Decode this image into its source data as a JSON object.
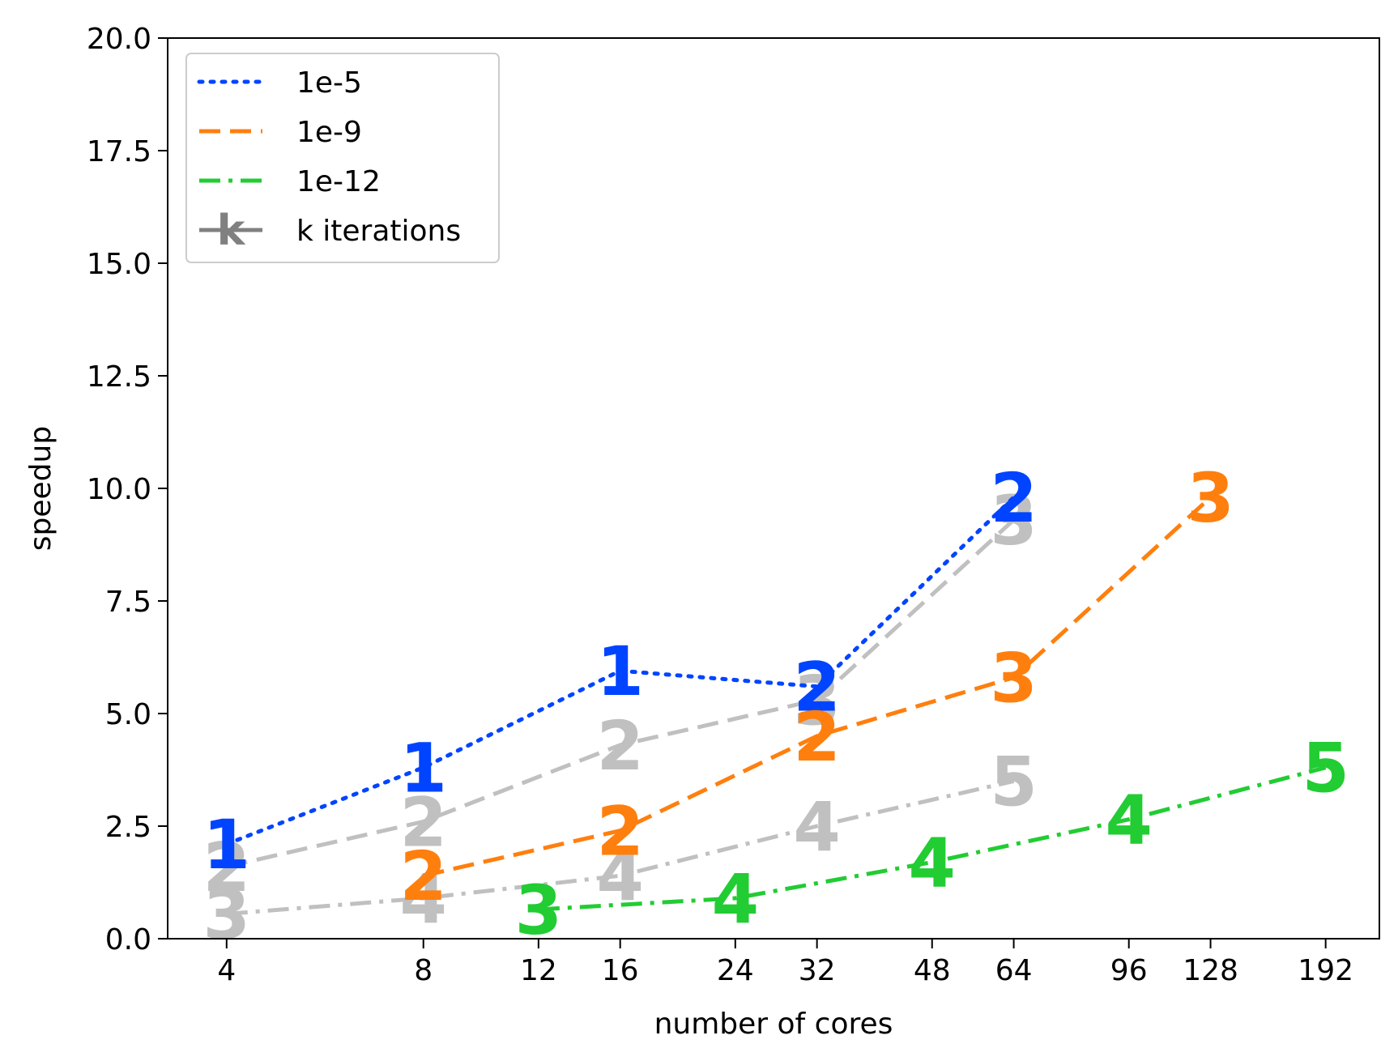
{
  "chart_data": {
    "type": "line",
    "xlabel": "number of cores",
    "ylabel": "speedup",
    "xscale": "log",
    "x_ticks": [
      4,
      8,
      12,
      16,
      24,
      32,
      48,
      64,
      96,
      128,
      192
    ],
    "x_tick_labels": [
      "4",
      "8",
      "12",
      "16",
      "24",
      "32",
      "48",
      "64",
      "96",
      "128",
      "192"
    ],
    "ylim": [
      0,
      20
    ],
    "y_ticks": [
      0,
      2.5,
      5,
      7.5,
      10,
      12.5,
      15,
      17.5,
      20
    ],
    "y_tick_labels": [
      "0.0",
      "2.5",
      "5.0",
      "7.5",
      "10.0",
      "12.5",
      "15.0",
      "17.5",
      "20.0"
    ],
    "grid": false,
    "legend": {
      "position": "top-left",
      "entries": [
        {
          "label": "1e-5",
          "color": "#0044ff",
          "style": "dotted"
        },
        {
          "label": "1e-9",
          "color": "#ff7f0e",
          "style": "dashed"
        },
        {
          "label": "1e-12",
          "color": "#22cc33",
          "style": "dashdot"
        },
        {
          "label": "k iterations",
          "color": "#808080",
          "style": "solid",
          "marker": "k"
        }
      ]
    },
    "series": [
      {
        "name": "1e-5",
        "color": "#0044ff",
        "style": "dotted",
        "x": [
          4,
          8,
          16,
          32,
          64
        ],
        "y": [
          2.1,
          3.8,
          5.95,
          5.6,
          9.8
        ],
        "k": [
          "1",
          "1",
          "1",
          "2",
          "2"
        ]
      },
      {
        "name": "1e-9",
        "color": "#ff7f0e",
        "style": "dashed",
        "x": [
          8,
          16,
          32,
          64,
          128
        ],
        "y": [
          1.4,
          2.4,
          4.5,
          5.8,
          9.8
        ],
        "k": [
          "2",
          "2",
          "2",
          "3",
          "3"
        ]
      },
      {
        "name": "1e-12",
        "color": "#22cc33",
        "style": "dashdot",
        "x": [
          12,
          24,
          48,
          96,
          192
        ],
        "y": [
          0.65,
          0.9,
          1.7,
          2.65,
          3.8
        ],
        "k": [
          "3",
          "4",
          "4",
          "4",
          "5"
        ]
      },
      {
        "color": "#c0c0c0",
        "style": "dashed",
        "x": [
          4,
          8,
          16,
          32,
          64
        ],
        "y": [
          1.6,
          2.6,
          4.3,
          5.3,
          9.3
        ],
        "k": [
          "2",
          "2",
          "2",
          "3",
          "3"
        ]
      },
      {
        "color": "#c0c0c0",
        "style": "dashdot",
        "x": [
          4,
          8,
          16,
          32,
          64
        ],
        "y": [
          0.55,
          0.9,
          1.4,
          2.5,
          3.5
        ],
        "k": [
          "3",
          "4",
          "4",
          "4",
          "5"
        ]
      }
    ]
  }
}
